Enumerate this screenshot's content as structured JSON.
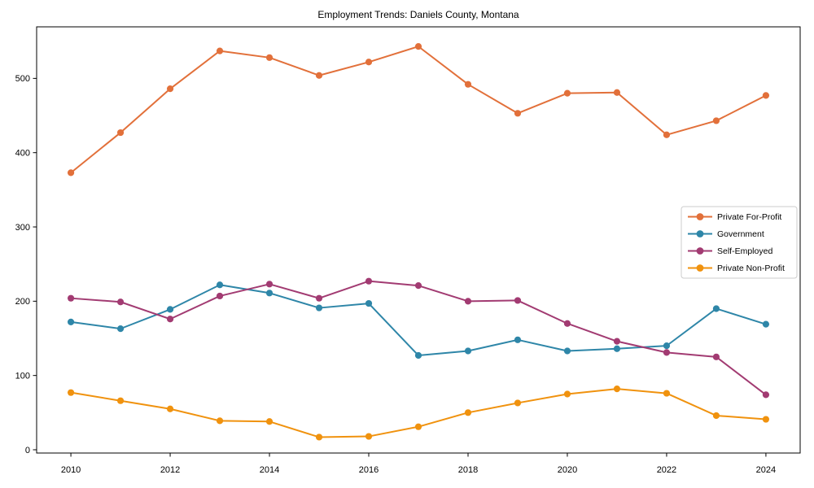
{
  "chart_data": {
    "type": "line",
    "title": "Employment Trends: Daniels County, Montana",
    "xlabel": "",
    "ylabel": "",
    "x": [
      2010,
      2011,
      2012,
      2013,
      2014,
      2015,
      2016,
      2017,
      2018,
      2019,
      2020,
      2021,
      2022,
      2023,
      2024
    ],
    "series": [
      {
        "name": "Private For-Profit",
        "color": "#E2703A",
        "values": [
          373,
          427,
          486,
          537,
          528,
          504,
          522,
          543,
          492,
          453,
          480,
          481,
          424,
          443,
          477
        ]
      },
      {
        "name": "Government",
        "color": "#2E86A8",
        "values": [
          172,
          163,
          189,
          222,
          211,
          191,
          197,
          127,
          133,
          148,
          133,
          136,
          140,
          190,
          169
        ]
      },
      {
        "name": "Self-Employed",
        "color": "#A23B72",
        "values": [
          204,
          199,
          176,
          207,
          223,
          204,
          227,
          221,
          200,
          201,
          170,
          146,
          131,
          125,
          74
        ]
      },
      {
        "name": "Private Non-Profit",
        "color": "#F0920E",
        "values": [
          77,
          66,
          55,
          39,
          38,
          17,
          18,
          31,
          50,
          63,
          75,
          82,
          76,
          46,
          41
        ]
      }
    ],
    "xticks": [
      2010,
      2012,
      2014,
      2016,
      2018,
      2020,
      2022,
      2024
    ],
    "yticks": [
      0,
      100,
      200,
      300,
      400,
      500
    ],
    "xlim": [
      2009.31,
      2024.69
    ],
    "ylim": [
      -4.4,
      569.4
    ],
    "grid": false,
    "legend_position": "center-right",
    "legend_labels": [
      "Private For-Profit",
      "Government",
      "Self-Employed",
      "Private Non-Profit"
    ]
  }
}
